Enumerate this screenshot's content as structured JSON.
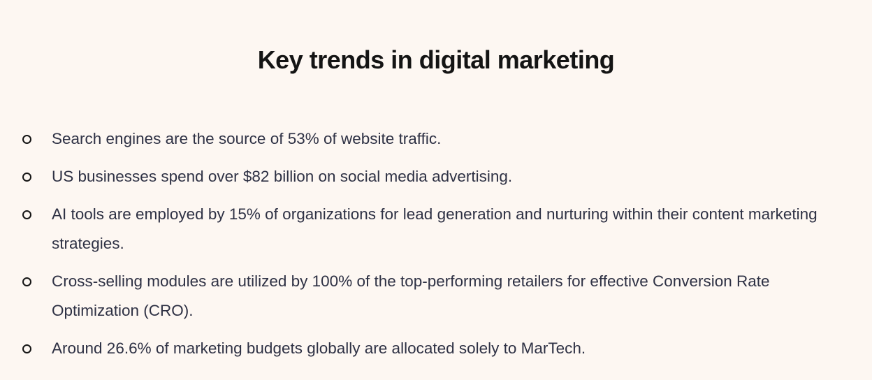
{
  "title": "Key trends in digital marketing",
  "items": [
    {
      "text": "Search engines are the source of 53% of website traffic."
    },
    {
      "text": "US businesses spend over $82 billion on social media advertising."
    },
    {
      "text": "AI tools are employed by 15% of organizations for lead generation and nurturing within their content marketing strategies."
    },
    {
      "text": "Cross-selling modules are utilized by 100% of the top-performing retailers for effective Conversion Rate Optimization (CRO)."
    },
    {
      "text": "Around 26.6% of marketing budgets globally are allocated solely to MarTech."
    }
  ],
  "colors": {
    "background": "#fdf7f2",
    "title": "#141414",
    "body_text": "#2e3144",
    "bullet": "#141414"
  },
  "icons": {
    "bullet": "hollow-circle-bullet-icon"
  }
}
